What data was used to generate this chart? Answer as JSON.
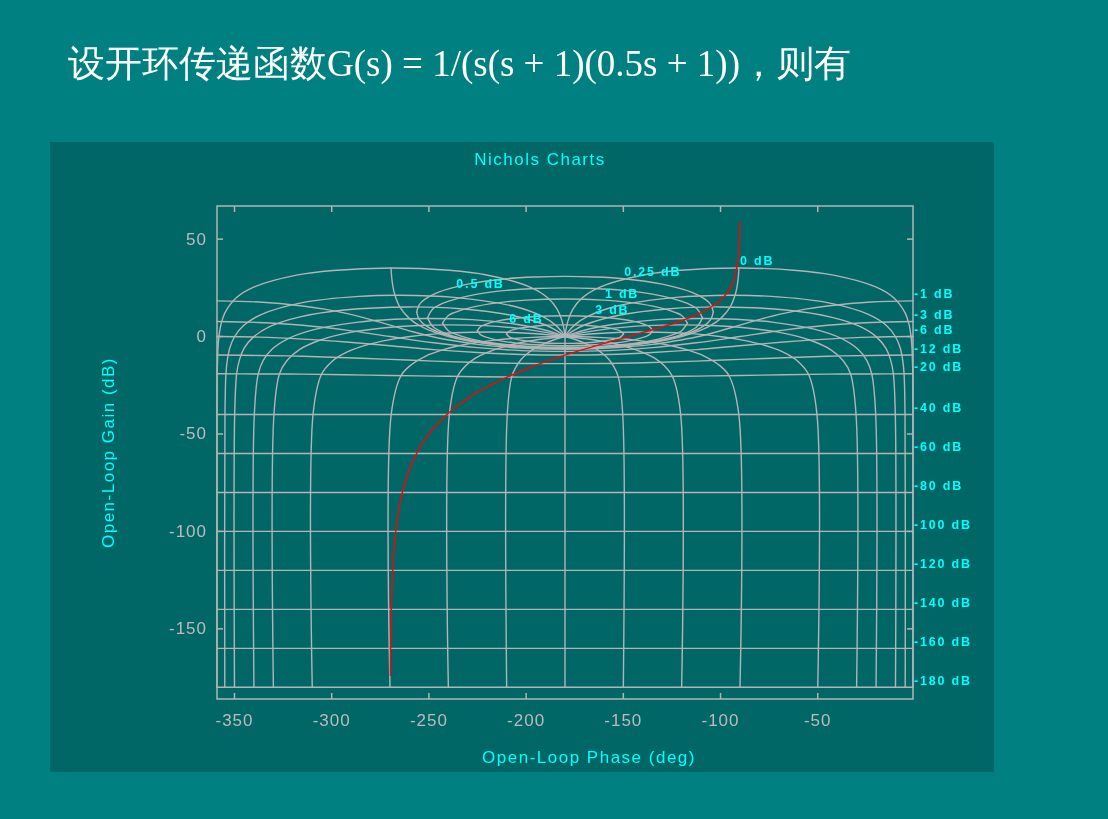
{
  "chart_data": {
    "type": "line",
    "title": "设开环传递函数G(s) = 1/(s(s + 1)(0.5s + 1))，则有",
    "subtitle": "Nichols Charts",
    "xlabel": "Open-Loop Phase (deg)",
    "ylabel": "Open-Loop Gain (dB)",
    "xlim": [
      -359,
      -1
    ],
    "ylim": [
      -186,
      67
    ],
    "xticks": [
      -350,
      -300,
      -250,
      -200,
      -150,
      -100,
      -50
    ],
    "yticks": [
      -150,
      -100,
      -50,
      0,
      50
    ],
    "series": [
      {
        "color": "#b0b4b0",
        "x": [
          -210.1,
          -208.5,
          -206,
          -200,
          -190,
          -180,
          -170,
          -160,
          -154,
          -151.5,
          -149.9
        ],
        "values": [
          1.3,
          2.8,
          3.7,
          4.8,
          5.8,
          6,
          5.8,
          4.8,
          3.7,
          2.8,
          1.3
        ]
      },
      {
        "color": "#b1b4b0",
        "x": [
          -210.1,
          -208.5,
          -206,
          -200,
          -190,
          -180,
          -170,
          -160,
          -154,
          -151.5,
          -149.9
        ],
        "values": [
          1.3,
          -0.3,
          -1.2,
          -2.3,
          -3.3,
          -3.5,
          -3.3,
          -2.3,
          -1.2,
          -0.3,
          1.3
        ]
      },
      {
        "color": "#b2b4b0",
        "x": [
          -225.1,
          -223.5,
          -221,
          -215,
          -205,
          -195,
          -180,
          -165,
          -155,
          -145,
          -139,
          -136.5,
          -134.9
        ],
        "values": [
          3,
          5,
          6.2,
          7.9,
          9.4,
          10.3,
          10.7,
          10.3,
          9.4,
          7.9,
          6.2,
          5,
          3
        ]
      },
      {
        "color": "#b3b4b0",
        "x": [
          -225.1,
          -223.5,
          -221,
          -215,
          -205,
          -195,
          -180,
          -165,
          -155,
          -145,
          -139,
          -136.5,
          -134.9
        ],
        "values": [
          3,
          1,
          -0.2,
          -1.8,
          -3.4,
          -4.2,
          -4.7,
          -4.2,
          -3.4,
          -1.8,
          -0.2,
          1,
          3
        ]
      },
      {
        "color": "#b4b4b0",
        "x": [
          -243,
          -240,
          -237,
          -228,
          -215,
          -200,
          -180,
          -160,
          -145,
          -132,
          -123,
          -120,
          -117
        ],
        "values": [
          6.9,
          10.8,
          12.3,
          15,
          17.3,
          18.7,
          19.3,
          18.7,
          17.3,
          15,
          12.3,
          10.8,
          6.9
        ]
      },
      {
        "color": "#b5b4b0",
        "x": [
          -243,
          -240,
          -237,
          -228,
          -215,
          -200,
          -180,
          -160,
          -145,
          -132,
          -123,
          -120,
          -117
        ],
        "values": [
          6.9,
          3,
          1.5,
          -1.3,
          -3.5,
          -4.9,
          -5.5,
          -4.9,
          -3.5,
          -1.3,
          1.5,
          3,
          6.9
        ]
      },
      {
        "color": "#b6b4b0",
        "x": [
          -250.7,
          -248,
          -243,
          -235,
          -225,
          -210,
          -195,
          -180,
          -165,
          -150,
          -135,
          -125,
          -117,
          -112,
          -109.3
        ],
        "values": [
          9.6,
          14.1,
          17,
          19.6,
          21.8,
          23.7,
          24.7,
          25,
          24.7,
          23.7,
          21.8,
          19.6,
          17,
          14.1,
          9.6
        ]
      },
      {
        "color": "#b7b4b0",
        "x": [
          -250.7,
          -248,
          -243,
          -235,
          -225,
          -210,
          -195,
          -180,
          -165,
          -150,
          -135,
          -125,
          -117,
          -112,
          -109.3
        ],
        "values": [
          9.6,
          5.2,
          2.3,
          -0.4,
          -2.5,
          -4.4,
          -5.5,
          -5.8,
          -5.5,
          -4.4,
          -2.5,
          -0.4,
          2.3,
          5.2,
          9.6
        ]
      },
      {
        "color": "#b8b4b0",
        "x": [
          -256.3,
          -255,
          -252,
          -245,
          -230,
          -210,
          -195,
          -180,
          -165,
          -150,
          -130,
          -115,
          -108,
          -105,
          -103.7
        ],
        "values": [
          12.5,
          16.3,
          19.2,
          22.8,
          26.9,
          29.7,
          30.6,
          30.9,
          30.6,
          29.7,
          26.9,
          22.8,
          19.2,
          16.3,
          12.5
        ]
      },
      {
        "color": "#b9b4b0",
        "x": [
          -256.3,
          -255,
          -252,
          -245,
          -230,
          -210,
          -195,
          -180,
          -165,
          -150,
          -130,
          -115,
          -108,
          -105,
          -103.7
        ],
        "values": [
          12.5,
          8.8,
          5.9,
          2.2,
          -1.9,
          -4.6,
          -5.6,
          -5.9,
          -5.6,
          -4.6,
          -1.9,
          2.2,
          5.9,
          8.8,
          12.5
        ]
      },
      {
        "color": "#b0b4b3",
        "x": [
          -269.5,
          -269,
          -268,
          -265,
          -260,
          -255,
          -250,
          -240,
          -225,
          -210,
          -180,
          -150,
          -135,
          -120,
          -110,
          -105,
          -100,
          -95,
          -92,
          -91,
          -90.5
        ],
        "values": [
          35.2,
          29.1,
          23.1,
          15.2,
          9.2,
          5.7,
          3.3,
          0,
          -3,
          -4.8,
          -6,
          -4.8,
          -3,
          0,
          3.3,
          5.7,
          9.2,
          15.2,
          23.1,
          29.1,
          35.2
        ]
      },
      {
        "color": "#b1b4b3",
        "x": [
          -359,
          -337.5,
          -315,
          -303.8,
          -292.5,
          -281.3,
          -270,
          -258.8,
          -247.5,
          -236.3,
          -225,
          -202.5,
          -180,
          -157.5,
          -135,
          -123.8,
          -112.5,
          -101.3,
          -90,
          -78.8,
          -67.5,
          -56.3,
          -45,
          -22.5,
          -1
        ],
        "values": [
          18.3,
          17.7,
          15.7,
          14.1,
          11.9,
          9.1,
          5.9,
          2.6,
          -0.2,
          -2.3,
          -4,
          -5.9,
          -6.5,
          -5.9,
          -4,
          -2.3,
          -0.2,
          2.6,
          5.9,
          9.1,
          11.9,
          14.1,
          15.7,
          17.7,
          18.3
        ]
      },
      {
        "color": "#b2b4b3",
        "x": [
          -359,
          -337.5,
          -315,
          -292.5,
          -270,
          -247.5,
          -225,
          -202.5,
          -180,
          -157.5,
          -135,
          -112.5,
          -90,
          -67.5,
          -45,
          -22.5,
          -1
        ],
        "values": [
          7.7,
          7.2,
          5.8,
          3.3,
          0,
          -3.2,
          -5.7,
          -7.2,
          -7.6,
          -7.2,
          -5.7,
          -3.2,
          0,
          3.3,
          5.8,
          7.2,
          7.7
        ]
      },
      {
        "color": "#b3b4b3",
        "x": [
          -359,
          -337.5,
          -315,
          -292.5,
          -270,
          -247.5,
          -225,
          -202.5,
          -180,
          -157.5,
          -135,
          -112.5,
          -90,
          -67.5,
          -45,
          -22.5,
          -1
        ],
        "values": [
          0,
          -0.3,
          -1.3,
          -2.8,
          -4.7,
          -6.7,
          -8.2,
          -9.2,
          -9.5,
          -9.2,
          -8.2,
          -6.7,
          -4.7,
          -2.8,
          -1.3,
          -0.3,
          0
        ]
      },
      {
        "color": "#b4b4b3",
        "x": [
          -359,
          -337.5,
          -315,
          -292.5,
          -270,
          -247.5,
          -225,
          -202.5,
          -180,
          -157.5,
          -135,
          -112.5,
          -90,
          -67.5,
          -45,
          -22.5,
          -1
        ],
        "values": [
          -9.5,
          -9.7,
          -10.1,
          -10.9,
          -11.7,
          -12.6,
          -13.3,
          -13.8,
          -13.9,
          -13.8,
          -13.3,
          -12.6,
          -11.7,
          -10.9,
          -10.1,
          -9.7,
          -9.5
        ]
      },
      {
        "color": "#b5b4b3",
        "x": [
          -359,
          -337.5,
          -315,
          -292.5,
          -270,
          -247.5,
          -225,
          -202.5,
          -180,
          -157.5,
          -135,
          -112.5,
          -90,
          -67.5,
          -45,
          -22.5,
          -1
        ],
        "values": [
          -19.1,
          -19.2,
          -19.3,
          -19.6,
          -20,
          -20.3,
          -20.6,
          -20.8,
          -20.8,
          -20.8,
          -20.6,
          -20.3,
          -20,
          -19.6,
          -19.3,
          -19.2,
          -19.1
        ]
      },
      {
        "color": "#b6b4b3",
        "x": [
          -359,
          -1
        ],
        "values": [
          -40,
          -40
        ]
      },
      {
        "color": "#b7b4b3",
        "x": [
          -359,
          -1
        ],
        "values": [
          -60,
          -60
        ]
      },
      {
        "color": "#b8b4b3",
        "x": [
          -359,
          -1
        ],
        "values": [
          -80,
          -80
        ]
      },
      {
        "color": "#b9b4b3",
        "x": [
          -359,
          -1
        ],
        "values": [
          -100,
          -100
        ]
      },
      {
        "color": "#b0b4b6",
        "x": [
          -359,
          -1
        ],
        "values": [
          -120,
          -120
        ]
      },
      {
        "color": "#b1b4b6",
        "x": [
          -359,
          -1
        ],
        "values": [
          -140,
          -140
        ]
      },
      {
        "color": "#b2b4b6",
        "x": [
          -359,
          -1
        ],
        "values": [
          -160,
          -160
        ]
      },
      {
        "color": "#b3b4b6",
        "x": [
          -359,
          -1
        ],
        "values": [
          -180,
          -180
        ]
      },
      {
        "color": "#b4b4b6",
        "x": [
          -1,
          -1,
          -1.1,
          -1.3,
          -1.5,
          -2,
          -3,
          -5,
          -10.9,
          -20.2,
          -41.9,
          -60.8,
          -90.5,
          -120.4,
          -139.7,
          -161.7,
          -171.1,
          -176,
          -178.5,
          -179.6,
          -180
        ],
        "values": [
          -180,
          -39.9,
          -19.1,
          -12,
          -6,
          0,
          6,
          12,
          19.9,
          25.5,
          31.5,
          33.9,
          35.2,
          34,
          31.6,
          25.5,
          19.9,
          14,
          8,
          3.1,
          0
        ]
      },
      {
        "color": "#b5b4b6",
        "x": [
          -359,
          -359,
          -358.9,
          -358.7,
          -358.5,
          -358,
          -357,
          -355,
          -349.1,
          -339.8,
          -318.1,
          -299.2,
          -269.5,
          -239.6,
          -220.3,
          -198.3,
          -188.9,
          -184,
          -181.5,
          -180.4,
          -180
        ],
        "values": [
          -180,
          -39.9,
          -19.1,
          -12,
          -6,
          0,
          6,
          12,
          19.9,
          25.5,
          31.5,
          33.9,
          35.2,
          34,
          31.6,
          25.5,
          19.9,
          14,
          8,
          3.1,
          0
        ]
      },
      {
        "color": "#b6b4b6",
        "x": [
          -5,
          -5.1,
          -5.6,
          -6.3,
          -7.5,
          -10,
          -14.8,
          -24,
          -45,
          -73.8,
          -95,
          -122.9,
          -154.2,
          -168.6,
          -175,
          -178.3,
          -180
        ],
        "values": [
          -180,
          -39.9,
          -19.1,
          -12.1,
          -6.1,
          -0.1,
          5.8,
          11.4,
          17.4,
          20.6,
          21.2,
          20.1,
          15.4,
          10.2,
          6,
          2.5,
          0
        ]
      },
      {
        "color": "#b7b4b6",
        "x": [
          -355,
          -354.9,
          -354.4,
          -353.7,
          -352.5,
          -350,
          -345.2,
          -336,
          -315,
          -286.2,
          -265,
          -237.1,
          -205.8,
          -191.4,
          -185,
          -181.7,
          -180
        ],
        "values": [
          -180,
          -39.9,
          -19.1,
          -12.1,
          -6.1,
          -0.1,
          5.8,
          11.4,
          17.4,
          20.6,
          21.2,
          20.1,
          15.4,
          10.2,
          6,
          2.5,
          0
        ]
      },
      {
        "color": "#b8b4b6",
        "x": [
          -10,
          -10.1,
          -11.1,
          -12.5,
          -14.9,
          -19.7,
          -28.6,
          -43.2,
          -66.4,
          -100,
          -126,
          -153.5,
          -170.3,
          -176.7,
          -180
        ],
        "values": [
          -180,
          -39.9,
          -19.1,
          -12.1,
          -6.1,
          -0.3,
          5.3,
          10,
          13.6,
          15.2,
          14.3,
          10.7,
          5.8,
          2.4,
          0
        ]
      },
      {
        "color": "#b9b4b6",
        "x": [
          -350,
          -349.9,
          -348.9,
          -347.5,
          -345.1,
          -340.3,
          -331.4,
          -316.8,
          -293.6,
          -260,
          -234,
          -206.5,
          -189.7,
          -183.3,
          -180
        ],
        "values": [
          -180,
          -39.9,
          -19.1,
          -12.1,
          -6.1,
          -0.3,
          5.3,
          10,
          13.6,
          15.2,
          14.3,
          10.7,
          5.8,
          2.4,
          0
        ]
      },
      {
        "color": "#b0b4b9",
        "x": [
          -20,
          -20.2,
          -22.2,
          -24.8,
          -29.4,
          -37.9,
          -51.4,
          -72.7,
          -92.1,
          -110,
          -132.2,
          -154.8,
          -167.6,
          -175.2,
          -180
        ],
        "values": [
          -180,
          -39.9,
          -19.2,
          -12.2,
          -6.4,
          -0.9,
          3.7,
          7.3,
          8.9,
          9.3,
          8.7,
          6.3,
          3.9,
          1.8,
          0
        ]
      },
      {
        "color": "#b1b4b9",
        "x": [
          -340,
          -339.8,
          -337.8,
          -335.2,
          -330.6,
          -322.1,
          -308.6,
          -287.3,
          -267.9,
          -250,
          -227.8,
          -205.2,
          -192.4,
          -184.8,
          -180
        ],
        "values": [
          -180,
          -39.9,
          -19.2,
          -12.2,
          -6.4,
          -0.9,
          3.7,
          7.3,
          8.9,
          9.3,
          8.7,
          6.3,
          3.9,
          1.8,
          0
        ]
      },
      {
        "color": "#b2b4b9",
        "x": [
          -30,
          -30.3,
          -33.1,
          -36.9,
          -43.2,
          -53.8,
          -68.3,
          -86.3,
          -105,
          -120,
          -138.4,
          -156.2,
          -170.9,
          -180
        ],
        "values": [
          -180,
          -39.9,
          -19.2,
          -12.4,
          -6.8,
          -1.9,
          1.9,
          4.4,
          5.7,
          6,
          5.6,
          4.2,
          2,
          0
        ]
      },
      {
        "color": "#b3b4b9",
        "x": [
          -330,
          -329.7,
          -326.9,
          -323.1,
          -316.8,
          -306.2,
          -291.7,
          -273.7,
          -255,
          -240,
          -221.6,
          -203.8,
          -189.1,
          -180
        ],
        "values": [
          -180,
          -39.9,
          -19.2,
          -12.4,
          -6.8,
          -1.9,
          1.9,
          4.4,
          5.7,
          6,
          5.6,
          4.2,
          2,
          0
        ]
      },
      {
        "color": "#b4b4b9",
        "x": [
          -50,
          -50.4,
          -54.7,
          -60,
          -68,
          -79.4,
          -88.7,
          -99.4,
          -115,
          -132,
          -150.6,
          -167.2,
          -180
        ],
        "values": [
          -180,
          -39.9,
          -19.5,
          -12.9,
          -7.9,
          -3.9,
          -1.8,
          -0.1,
          1.5,
          2.2,
          2.2,
          1.3,
          0
        ]
      },
      {
        "color": "#b5b4b9",
        "x": [
          -310,
          -309.6,
          -305.3,
          -300,
          -292,
          -280.6,
          -271.3,
          -260.6,
          -245,
          -228,
          -209.4,
          -192.8,
          -180
        ],
        "values": [
          -180,
          -39.9,
          -19.5,
          -12.9,
          -7.9,
          -3.9,
          -1.8,
          -0.1,
          1.5,
          2.2,
          2.2,
          1.3,
          0
        ]
      },
      {
        "color": "#b6b4b9",
        "x": [
          -90,
          -90.6,
          -95.7,
          -101.3,
          -108.4,
          -116.6,
          -123.7,
          -135,
          -145,
          -153.4,
          -163.3,
          -171.5,
          -180
        ],
        "values": [
          -180,
          -40,
          -20,
          -14.2,
          -10,
          -7,
          -5.1,
          -3,
          -1.7,
          -1,
          -0.4,
          -0.1,
          0
        ]
      },
      {
        "color": "#b7b4b9",
        "x": [
          -270,
          -269.4,
          -264.3,
          -258.7,
          -251.6,
          -243.4,
          -236.3,
          -225,
          -215,
          -206.6,
          -196.7,
          -188.5,
          -180
        ],
        "values": [
          -180,
          -40,
          -20,
          -14.2,
          -10,
          -7,
          -5.1,
          -3,
          -1.7,
          -1,
          -0.4,
          -0.1,
          0
        ]
      },
      {
        "color": "#b8b4b9",
        "x": [
          -120,
          -120.5,
          -124.7,
          -129,
          -133.9,
          -139.1,
          -150,
          -160.9,
          -169.1,
          -180
        ],
        "values": [
          -180,
          -40,
          -20.5,
          -14.9,
          -11.1,
          -8.5,
          -4.8,
          -2.4,
          -1.2,
          0
        ]
      },
      {
        "color": "#b9b4b9",
        "x": [
          -240,
          -239.5,
          -235.3,
          -231,
          -226.1,
          -220.9,
          -210,
          -199.1,
          -190.9,
          -180
        ],
        "values": [
          -180,
          -40,
          -20.5,
          -14.9,
          -11.1,
          -8.5,
          -4.8,
          -2.4,
          -1.2,
          0
        ]
      },
      {
        "color": "#b0b4bc",
        "x": [
          -150,
          -150.3,
          -152.6,
          -154.9,
          -157.4,
          -159.9,
          -165,
          -170.1,
          -175.1,
          -180
        ],
        "values": [
          -180,
          -40.1,
          -20.7,
          -15.4,
          -11.8,
          -9.3,
          -5.7,
          -3.3,
          -1.4,
          0
        ]
      },
      {
        "color": "#b1b4bc",
        "x": [
          -210,
          -209.7,
          -207.4,
          -205.1,
          -202.6,
          -200.1,
          -195,
          -189.9,
          -184.9,
          -180
        ],
        "values": [
          -180,
          -40.1,
          -20.7,
          -15.4,
          -11.8,
          -9.3,
          -5.7,
          -3.3,
          -1.4,
          0
        ]
      },
      {
        "color": "#b2b4bc",
        "x": [
          -180,
          -180
        ],
        "values": [
          -180,
          0
        ]
      },
      {
        "color": "#ff0000",
        "x": [
          -90.1,
          -90.9,
          -94.3,
          -98.6,
          -107,
          -115.2,
          -123.1,
          -130.6,
          -137.7,
          -144.3,
          -150.5,
          -161.6,
          -171.2,
          -180,
          -189.9,
          -198.4,
          -209.5,
          -217.9,
          -229.4,
          -236.9,
          -245.9,
          -253,
          -258.6,
          -261.4,
          -264.3,
          -266.6,
          -268.3,
          -269.1,
          -269.7,
          -269.8
        ],
        "values": [
          58.5,
          40,
          26,
          20,
          13.8,
          10,
          7.1,
          4.8,
          2.7,
          0.9,
          -0.9,
          -4,
          -6.8,
          -9.5,
          -12.9,
          -16,
          -20.7,
          -24.7,
          -31.3,
          -36.7,
          -45.1,
          -54.2,
          -64.6,
          -72.1,
          -82.6,
          -95.9,
          -114,
          -132,
          -155.9,
          -174
        ]
      }
    ],
    "annotations": [
      {
        "text": "0 dB",
        "x": -90.5,
        "y": 35.2
      },
      {
        "text": "0.25 dB",
        "x": -150,
        "y": 29.7
      },
      {
        "text": "0.5 dB",
        "x": -210,
        "y": 23.7
      },
      {
        "text": "1 dB",
        "x": -160,
        "y": 18.7
      },
      {
        "text": "3 dB",
        "x": -165,
        "y": 10.3
      },
      {
        "text": "6 dB",
        "x": -190,
        "y": 5.8
      },
      {
        "text": "-1 dB",
        "x": -1,
        "y": 18.3
      },
      {
        "text": "-3 dB",
        "x": -1,
        "y": 7.7
      },
      {
        "text": "-6 dB",
        "x": -1,
        "y": 0
      },
      {
        "text": "-12 dB",
        "x": -1,
        "y": -9.5
      },
      {
        "text": "-20 dB",
        "x": -1,
        "y": -19.1
      },
      {
        "text": "-40 dB",
        "x": -1,
        "y": -40
      },
      {
        "text": "-60 dB",
        "x": -1,
        "y": -60
      },
      {
        "text": "-80 dB",
        "x": -1,
        "y": -80
      },
      {
        "text": "-100 dB",
        "x": -1,
        "y": -100
      },
      {
        "text": "-120 dB",
        "x": -1,
        "y": -120
      },
      {
        "text": "-140 dB",
        "x": -1,
        "y": -140
      },
      {
        "text": "-160 dB",
        "x": -1,
        "y": -160
      },
      {
        "text": "-180 dB",
        "x": -1,
        "y": -180
      }
    ]
  }
}
